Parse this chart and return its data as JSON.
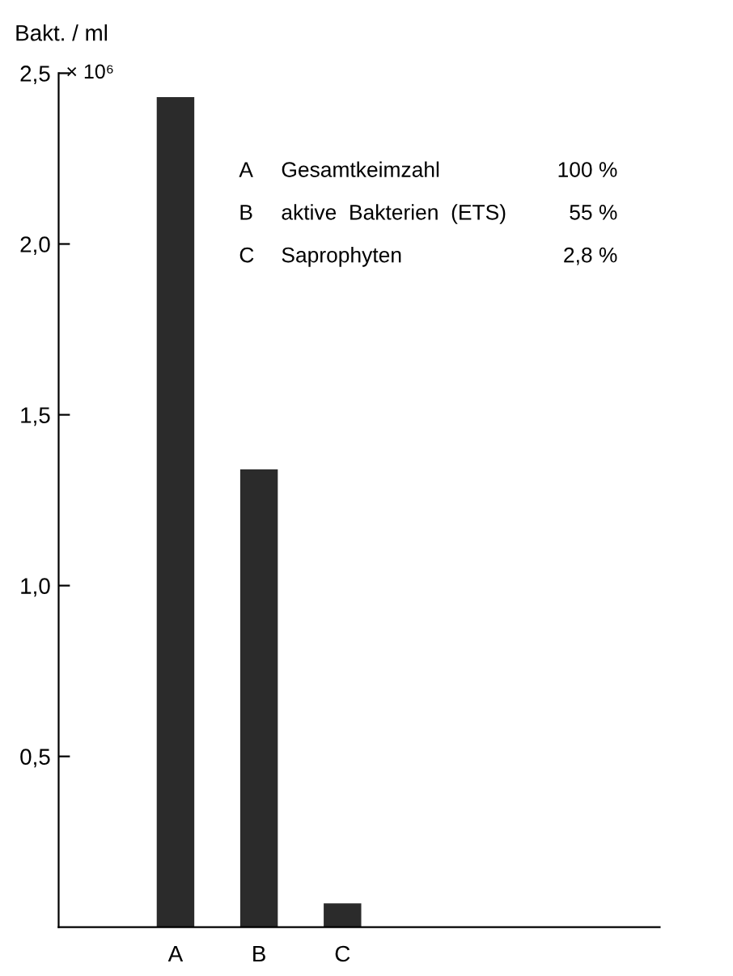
{
  "chart_data": {
    "type": "bar",
    "ylabel": "Bakt. / ml",
    "categories": [
      "A",
      "B",
      "C"
    ],
    "values": [
      2.43,
      1.34,
      0.07
    ],
    "color": "#2b2b2b",
    "ylim": [
      0,
      2.5
    ],
    "yticks": [
      {
        "value": 0.5,
        "label": "0,5"
      },
      {
        "value": 1.0,
        "label": "1,0"
      },
      {
        "value": 1.5,
        "label": "1,5"
      },
      {
        "value": 2.0,
        "label": "2,0"
      },
      {
        "value": 2.5,
        "label": "2,5"
      }
    ],
    "grid": false,
    "legend": false,
    "annotations": [
      "× 10⁶",
      "A",
      "Gesamtkeimzahl",
      "100 %",
      "B",
      "aktive  Bakterien  (ETS)",
      "55 %",
      "C",
      "Saprophyten",
      "2,8 %"
    ]
  }
}
